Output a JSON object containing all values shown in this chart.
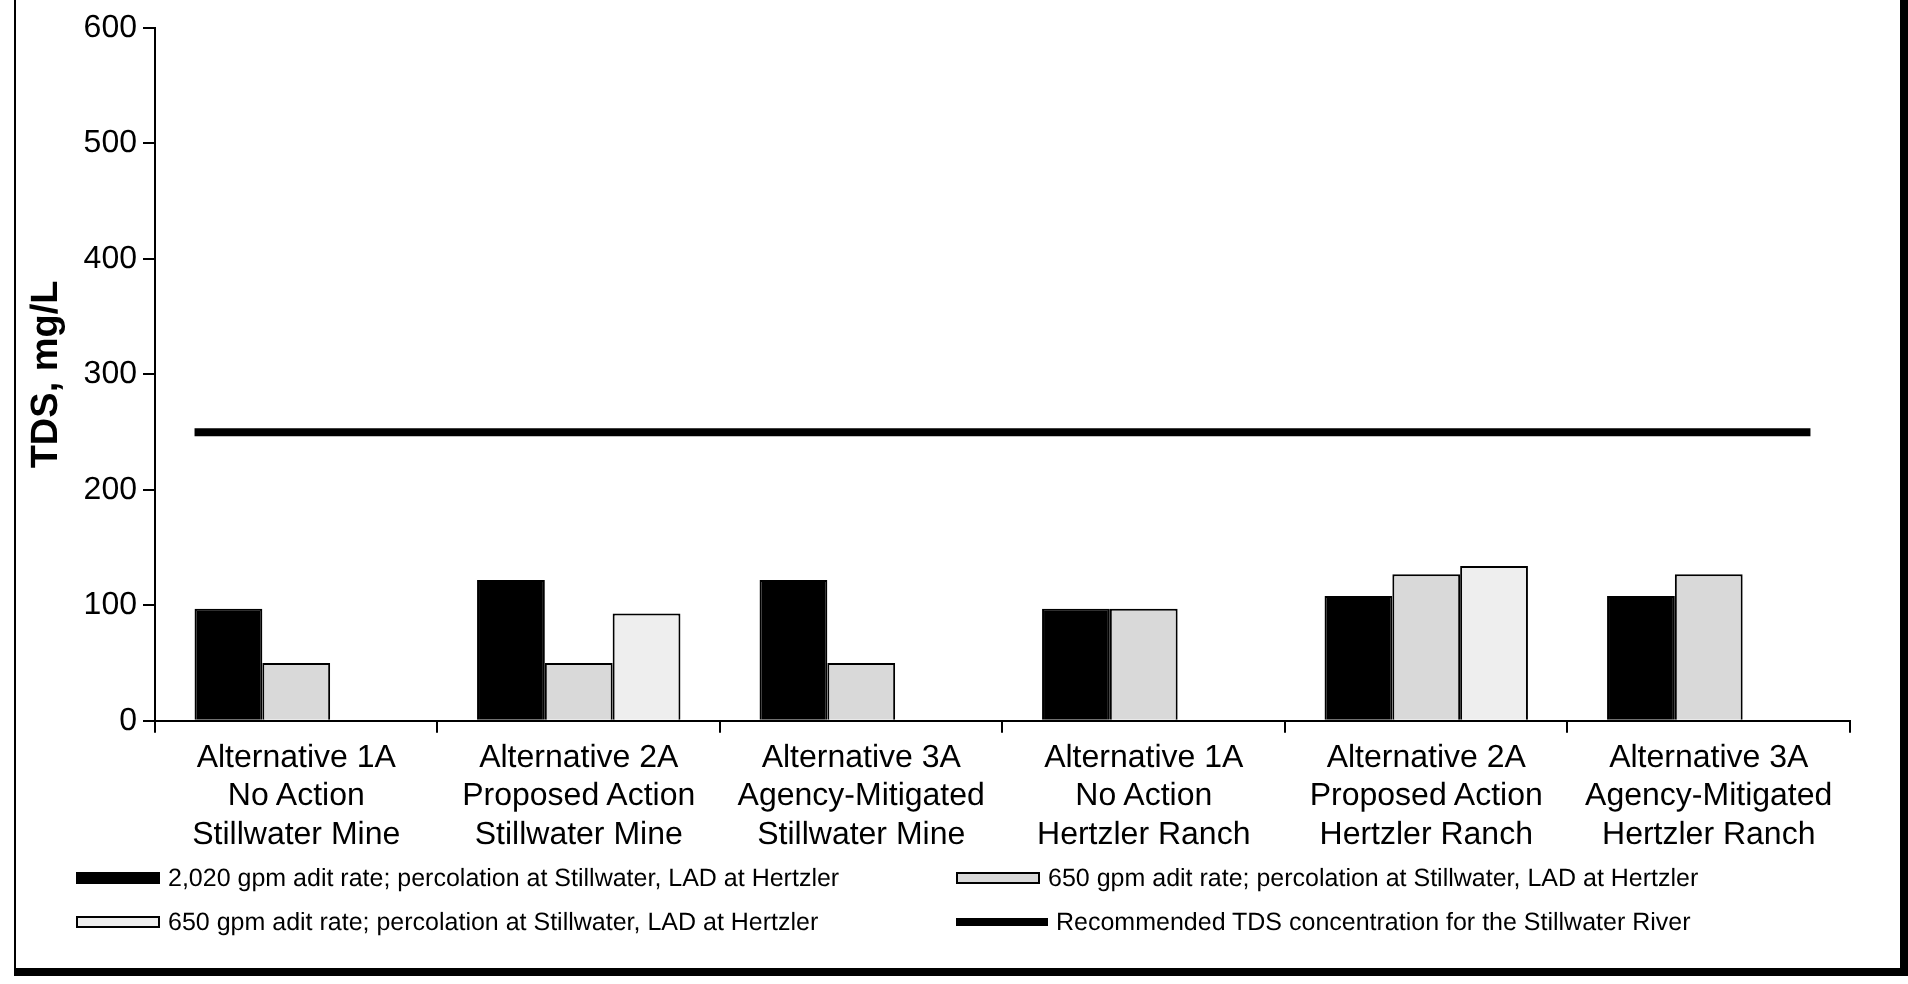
{
  "chart_data": {
    "type": "bar",
    "ylabel": "TDS, mg/L",
    "categories": [
      "Alternative 1A No Action Stillwater Mine",
      "Alternative 2A Proposed Action Stillwater Mine",
      "Alternative 3A Agency-Mitigated Stillwater Mine",
      "Alternative 1A No Action Hertzler Ranch",
      "Alternative 2A Proposed Action Hertzler Ranch",
      "Alternative 3A Agency-Mitigated Hertzler Ranch"
    ],
    "series": [
      {
        "name": "2,020 gpm adit rate; percolation at Stillwater, LAD at Hertzler",
        "color": "#000000",
        "values": [
          97,
          122,
          122,
          97,
          108,
          108
        ]
      },
      {
        "name": "650 gpm adit rate; percolation at Stillwater, LAD at Hertzler",
        "color": "#d9d9d9",
        "values": [
          50,
          50,
          50,
          97,
          127,
          127
        ]
      },
      {
        "name": "650 gpm adit rate; percolation at Stillwater, LAD at Hertzler",
        "color": "#eeeeee",
        "values": [
          null,
          93,
          null,
          null,
          134,
          null
        ]
      }
    ],
    "ref_lines": [
      {
        "axis": "y",
        "value": 250,
        "label": "Recommended TDS concentration for the Stillwater River",
        "color": "#000000"
      }
    ],
    "ylim": [
      0,
      600
    ],
    "yticks": [
      0,
      100,
      200,
      300,
      400,
      500,
      600
    ],
    "grid": false,
    "legend": "bottom"
  }
}
